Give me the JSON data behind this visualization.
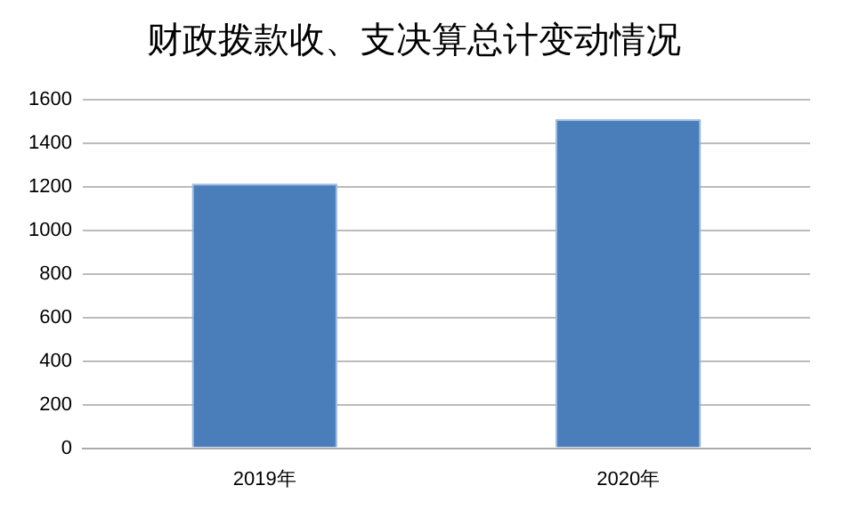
{
  "chart_data": {
    "type": "bar",
    "title": "财政拨款收、支决算总计变动情况",
    "categories": [
      "2019年",
      "2020年"
    ],
    "values": [
      1215,
      1510
    ],
    "color": "#4a7ebb",
    "ylim": [
      0,
      1600
    ],
    "yticks": [
      0,
      200,
      400,
      600,
      800,
      1000,
      1200,
      1400,
      1600
    ],
    "grid": "y",
    "legend": false
  }
}
